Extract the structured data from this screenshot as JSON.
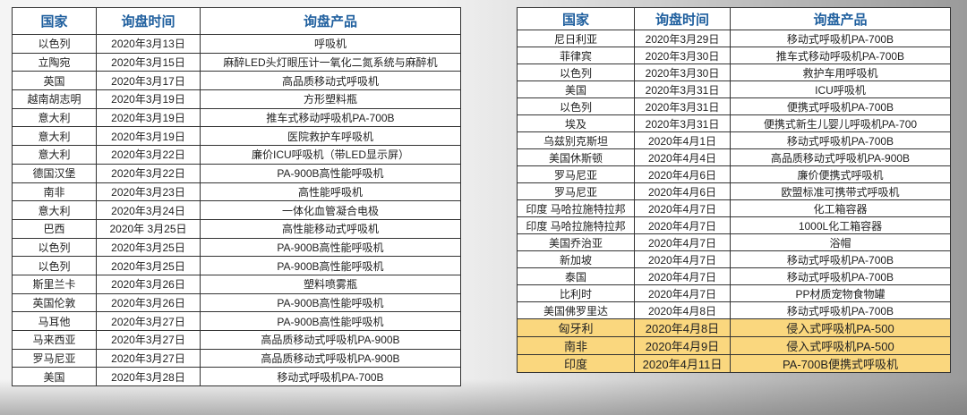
{
  "headers": {
    "country": "国家",
    "date": "询盘时间",
    "product": "询盘产品"
  },
  "highlight_color": "#fad77e",
  "left_table": [
    [
      "以色列",
      "2020年3月13日",
      "呼吸机"
    ],
    [
      "立陶宛",
      "2020年3月15日",
      "麻醉LED头灯眼压计一氧化二氮系统与麻醉机"
    ],
    [
      "英国",
      "2020年3月17日",
      "高品质移动式呼吸机"
    ],
    [
      "越南胡志明",
      "2020年3月19日",
      "方形塑料瓶"
    ],
    [
      "意大利",
      "2020年3月19日",
      "推车式移动呼吸机PA-700B"
    ],
    [
      "意大利",
      "2020年3月19日",
      "医院救护车呼吸机"
    ],
    [
      "意大利",
      "2020年3月22日",
      "廉价ICU呼吸机（带LED显示屏）"
    ],
    [
      "德国汉堡",
      "2020年3月22日",
      "PA-900B高性能呼吸机"
    ],
    [
      "南非",
      "2020年3月23日",
      "高性能呼吸机"
    ],
    [
      "意大利",
      "2020年3月24日",
      "一体化血管凝合电极"
    ],
    [
      "巴西",
      "2020年 3月25日",
      "高性能移动式呼吸机"
    ],
    [
      "以色列",
      "2020年3月25日",
      "PA-900B高性能呼吸机"
    ],
    [
      "以色列",
      "2020年3月25日",
      "PA-900B高性能呼吸机"
    ],
    [
      "斯里兰卡",
      "2020年3月26日",
      "塑料喷雾瓶"
    ],
    [
      "英国伦敦",
      "2020年3月26日",
      "PA-900B高性能呼吸机"
    ],
    [
      "马耳他",
      "2020年3月27日",
      "PA-900B高性能呼吸机"
    ],
    [
      "马来西亚",
      "2020年3月27日",
      "高品质移动式呼吸机PA-900B"
    ],
    [
      "罗马尼亚",
      "2020年3月27日",
      "高品质移动式呼吸机PA-900B"
    ],
    [
      "美国",
      "2020年3月28日",
      "移动式呼吸机PA-700B"
    ]
  ],
  "right_table": [
    [
      "尼日利亚",
      "2020年3月29日",
      "移动式呼吸机PA-700B"
    ],
    [
      "菲律宾",
      "2020年3月30日",
      "推车式移动呼吸机PA-700B"
    ],
    [
      "以色列",
      "2020年3月30日",
      "救护车用呼吸机"
    ],
    [
      "美国",
      "2020年3月31日",
      "ICU呼吸机"
    ],
    [
      "以色列",
      "2020年3月31日",
      "便携式呼吸机PA-700B"
    ],
    [
      "埃及",
      "2020年3月31日",
      "便携式新生儿婴儿呼吸机PA-700"
    ],
    [
      "乌兹别克斯坦",
      "2020年4月1日",
      "移动式呼吸机PA-700B"
    ],
    [
      "美国休斯顿",
      "2020年4月4日",
      "高品质移动式呼吸机PA-900B"
    ],
    [
      "罗马尼亚",
      "2020年4月6日",
      "廉价便携式呼吸机"
    ],
    [
      "罗马尼亚",
      "2020年4月6日",
      "欧盟标准可携带式呼吸机"
    ],
    [
      "印度 马哈拉施特拉邦",
      "2020年4月7日",
      "化工箱容器"
    ],
    [
      "印度 马哈拉施特拉邦",
      "2020年4月7日",
      "1000L化工箱容器"
    ],
    [
      "美国乔治亚",
      "2020年4月7日",
      "浴帽"
    ],
    [
      "新加坡",
      "2020年4月7日",
      "移动式呼吸机PA-700B"
    ],
    [
      "泰国",
      "2020年4月7日",
      "移动式呼吸机PA-700B"
    ],
    [
      "比利时",
      "2020年4月7日",
      "PP材质宠物食物罐"
    ],
    [
      "美国佛罗里达",
      "2020年4月8日",
      "移动式呼吸机PA-700B"
    ],
    [
      "匈牙利",
      "2020年4月8日",
      "侵入式呼吸机PA-500"
    ],
    [
      "南非",
      "2020年4月9日",
      "侵入式呼吸机PA-500"
    ],
    [
      "印度",
      "2020年4月11日",
      "PA-700B便携式呼吸机"
    ]
  ],
  "right_highlighted_rows": [
    17,
    18,
    19
  ]
}
